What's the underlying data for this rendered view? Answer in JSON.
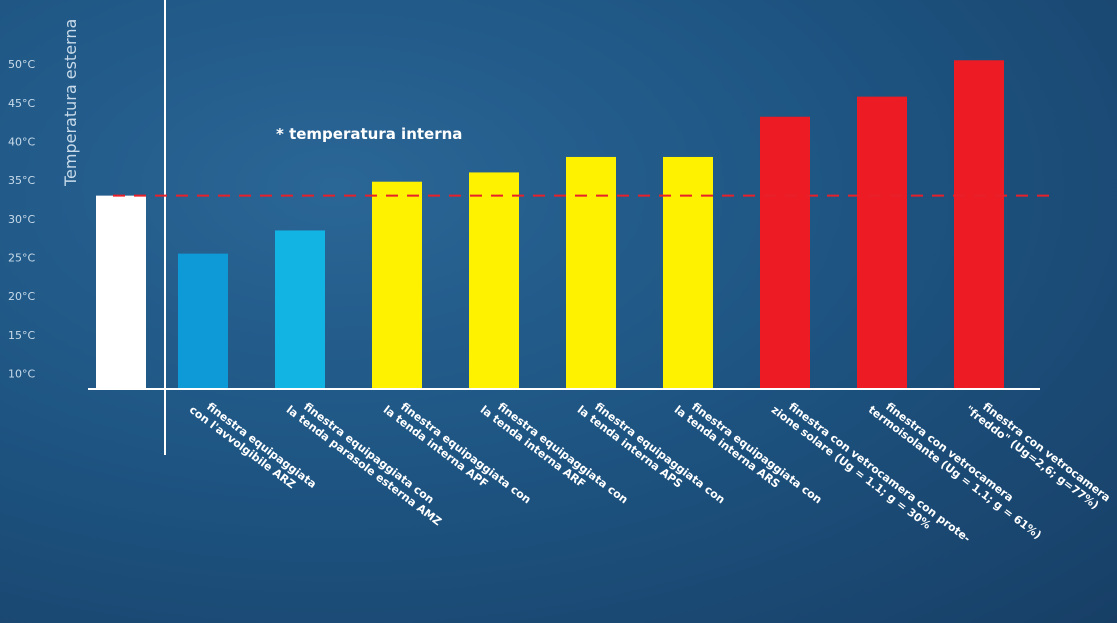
{
  "chart_data": {
    "type": "bar",
    "ylabel": "Temperatura esterna",
    "y_ticks": [
      "10°C",
      "15°C",
      "20°C",
      "25°C",
      "30°C",
      "35°C",
      "40°C",
      "45°C",
      "50°C"
    ],
    "y_tick_values": [
      10,
      15,
      20,
      25,
      30,
      35,
      40,
      45,
      50
    ],
    "ylim": [
      8,
      57
    ],
    "reference": {
      "value": 33,
      "label": "* temperatura interna"
    },
    "bars": [
      {
        "value": 33,
        "color": "#ffffff",
        "label": []
      },
      {
        "value": 25.5,
        "color": "#0d9ad6",
        "label": [
          "finestra equipaggiata",
          "con l'avvolgibile ARZ"
        ]
      },
      {
        "value": 28.5,
        "color": "#12b4e3",
        "label": [
          "finestra equipaggiata con",
          "la tenda parasole esterna AMZ"
        ]
      },
      {
        "value": 34.8,
        "color": "#fff200",
        "label": [
          "finestra equipaggiata con",
          "la tenda interna APF"
        ]
      },
      {
        "value": 36,
        "color": "#fff200",
        "label": [
          "finestra equipaggiata con",
          "la tenda interna ARF"
        ]
      },
      {
        "value": 38,
        "color": "#fff200",
        "label": [
          "finestra equipaggiata con",
          "la tenda interna APS"
        ]
      },
      {
        "value": 38,
        "color": "#fff200",
        "label": [
          "finestra equipaggiata con",
          "la tenda interna ARS"
        ]
      },
      {
        "value": 43.2,
        "color": "#ed1c24",
        "label": [
          "finestra con vetrocamera con prote-",
          "zione solare (Ug = 1.1; g = 30%"
        ]
      },
      {
        "value": 45.8,
        "color": "#ed1c24",
        "label": [
          "finestra con vetrocamera",
          "termoisolante (Ug = 1.1; g = 61%)"
        ]
      },
      {
        "value": 50.5,
        "color": "#ed1c24",
        "label": [
          "finestra con vetrocamera",
          "\"freddo\" (Ug=2,6; g=77%)"
        ]
      }
    ],
    "grid": false,
    "legend": "none"
  },
  "colors": {
    "axis": "#ffffff",
    "reference_line": "#e8202a",
    "tick_text": "#c9dbea"
  }
}
